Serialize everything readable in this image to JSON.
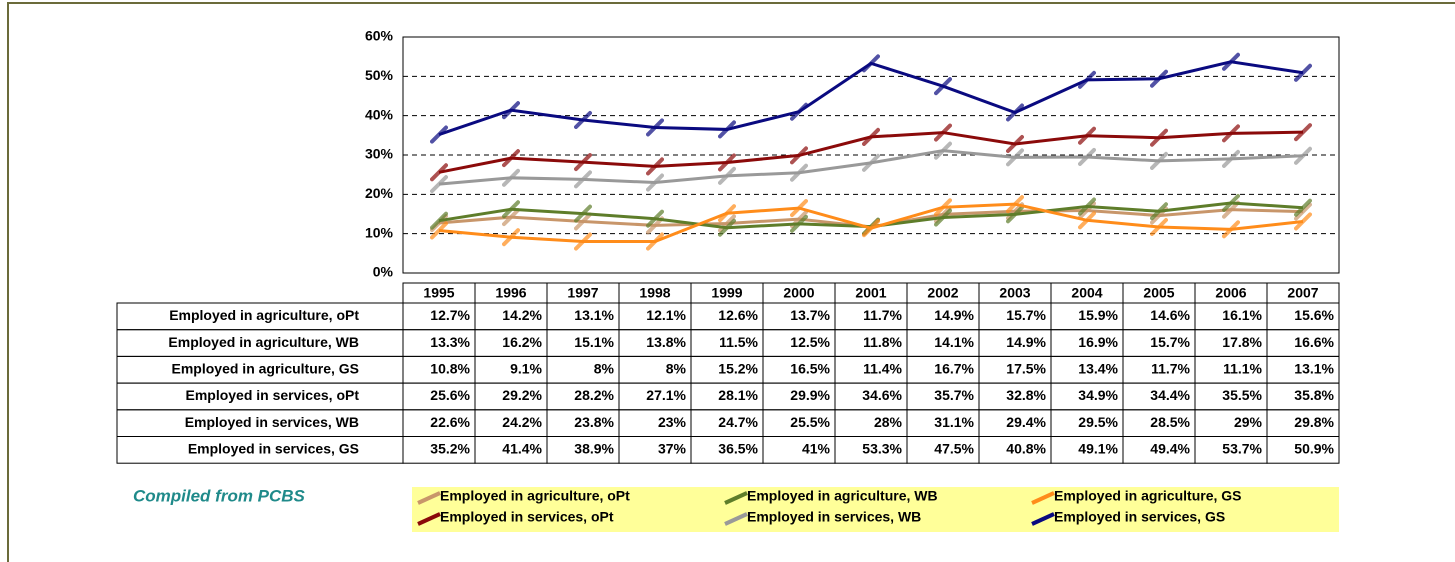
{
  "chart_data": {
    "type": "line",
    "categories": [
      "1995",
      "1996",
      "1997",
      "1998",
      "1999",
      "2000",
      "2001",
      "2002",
      "2003",
      "2004",
      "2005",
      "2006",
      "2007"
    ],
    "ylim": [
      0,
      60
    ],
    "yticks": [
      {
        "value": 0,
        "label": "0%"
      },
      {
        "value": 10,
        "label": "10%"
      },
      {
        "value": 20,
        "label": "20%"
      },
      {
        "value": 30,
        "label": "30%"
      },
      {
        "value": 40,
        "label": "40%"
      },
      {
        "value": 50,
        "label": "50%"
      },
      {
        "value": 60,
        "label": "60%"
      }
    ],
    "grid": true,
    "annotation": "Compiled from PCBS",
    "series": [
      {
        "name": "Employed in agriculture, oPt",
        "color": "#c8966a",
        "values": [
          12.7,
          14.2,
          13.1,
          12.1,
          12.6,
          13.7,
          11.7,
          14.9,
          15.7,
          15.9,
          14.6,
          16.1,
          15.6
        ],
        "value_labels": [
          "12.7%",
          "14.2%",
          "13.1%",
          "12.1%",
          "12.6%",
          "13.7%",
          "11.7%",
          "14.9%",
          "15.7%",
          "15.9%",
          "14.6%",
          "16.1%",
          "15.6%"
        ]
      },
      {
        "name": "Employed in agriculture, WB",
        "color": "#5e7d2a",
        "values": [
          13.3,
          16.2,
          15.1,
          13.8,
          11.5,
          12.5,
          11.8,
          14.1,
          14.9,
          16.9,
          15.7,
          17.8,
          16.6
        ],
        "value_labels": [
          "13.3%",
          "16.2%",
          "15.1%",
          "13.8%",
          "11.5%",
          "12.5%",
          "11.8%",
          "14.1%",
          "14.9%",
          "16.9%",
          "15.7%",
          "17.8%",
          "16.6%"
        ]
      },
      {
        "name": "Employed in agriculture, GS",
        "color": "#ff8c1a",
        "values": [
          10.8,
          9.1,
          8,
          8,
          15.2,
          16.5,
          11.4,
          16.7,
          17.5,
          13.4,
          11.7,
          11.1,
          13.1
        ],
        "value_labels": [
          "10.8%",
          "9.1%",
          "8%",
          "8%",
          "15.2%",
          "16.5%",
          "11.4%",
          "16.7%",
          "17.5%",
          "13.4%",
          "11.7%",
          "11.1%",
          "13.1%"
        ]
      },
      {
        "name": "Employed in services, oPt",
        "color": "#8b0a0a",
        "values": [
          25.6,
          29.2,
          28.2,
          27.1,
          28.1,
          29.9,
          34.6,
          35.7,
          32.8,
          34.9,
          34.4,
          35.5,
          35.8
        ],
        "value_labels": [
          "25.6%",
          "29.2%",
          "28.2%",
          "27.1%",
          "28.1%",
          "29.9%",
          "34.6%",
          "35.7%",
          "32.8%",
          "34.9%",
          "34.4%",
          "35.5%",
          "35.8%"
        ]
      },
      {
        "name": "Employed in services, WB",
        "color": "#999999",
        "values": [
          22.6,
          24.2,
          23.8,
          23,
          24.7,
          25.5,
          28,
          31.1,
          29.4,
          29.5,
          28.5,
          29,
          29.8
        ],
        "value_labels": [
          "22.6%",
          "24.2%",
          "23.8%",
          "23%",
          "24.7%",
          "25.5%",
          "28%",
          "31.1%",
          "29.4%",
          "29.5%",
          "28.5%",
          "29%",
          "29.8%"
        ]
      },
      {
        "name": "Employed in services, GS",
        "color": "#0a0a80",
        "values": [
          35.2,
          41.4,
          38.9,
          37,
          36.5,
          41,
          53.3,
          47.5,
          40.8,
          49.1,
          49.4,
          53.7,
          50.9
        ],
        "value_labels": [
          "35.2%",
          "41.4%",
          "38.9%",
          "37%",
          "36.5%",
          "41%",
          "53.3%",
          "47.5%",
          "40.8%",
          "49.1%",
          "49.4%",
          "53.7%",
          "50.9%"
        ]
      }
    ]
  }
}
